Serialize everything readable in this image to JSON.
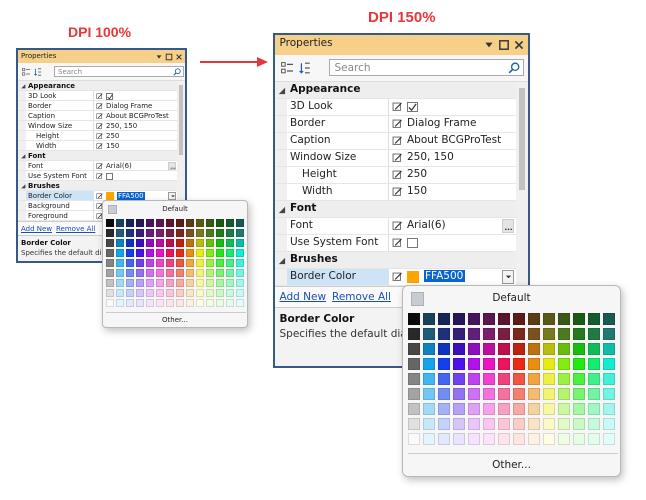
{
  "dpi_labels": [
    "DPI 100%",
    "DPI 150%"
  ],
  "window": {
    "title": "Properties",
    "search_placeholder": "Search",
    "groups": [
      {
        "name": "Appearance",
        "rows": [
          {
            "name": "3D Look",
            "checked": true
          },
          {
            "name": "Border",
            "value": "Dialog Frame"
          },
          {
            "name": "Caption",
            "value": "About BCGProTest"
          },
          {
            "name": "Window Size",
            "value": "250, 150",
            "children": [
              {
                "name": "Height",
                "value": "250"
              },
              {
                "name": "Width",
                "value": "150"
              }
            ]
          }
        ]
      },
      {
        "name": "Font",
        "rows": [
          {
            "name": "Font",
            "value": "Arial(6)"
          },
          {
            "name": "Use System Font",
            "checked": false
          }
        ]
      },
      {
        "name": "Brushes",
        "rows": [
          {
            "name": "Border Color",
            "value": "FFA500",
            "selected": true
          },
          {
            "name": "Background"
          },
          {
            "name": "Foreground"
          }
        ]
      }
    ],
    "links": [
      "Add New",
      "Remove All"
    ],
    "description": {
      "title": "Border Color",
      "text": "Specifies the default dialog"
    }
  },
  "color_popup": {
    "default": "Default",
    "other": "Other..."
  }
}
